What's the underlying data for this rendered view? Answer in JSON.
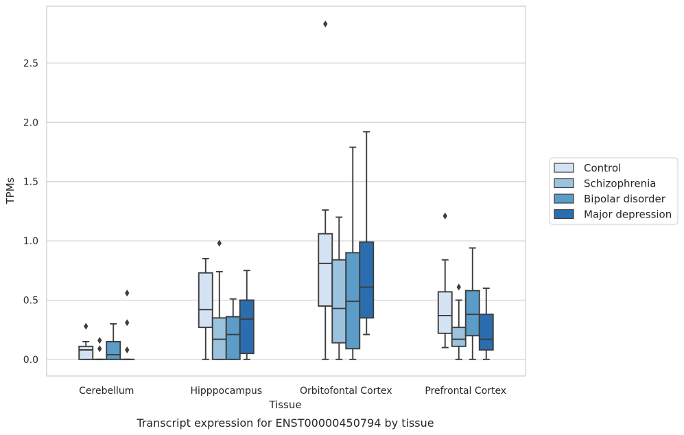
{
  "caption": "Transcript expression for ENST00000450794 by tissue",
  "chart_data": {
    "type": "boxplot",
    "xlabel": "Tissue",
    "ylabel": "TPMs",
    "ylim": [
      -0.14,
      2.98
    ],
    "yticks": [
      0.0,
      0.5,
      1.0,
      1.5,
      2.0,
      2.5
    ],
    "ytick_labels": [
      "0.0",
      "0.5",
      "1.0",
      "1.5",
      "2.0",
      "2.5"
    ],
    "grid": "horizontal",
    "legend_position": "right",
    "categories": [
      "Cerebellum",
      "Hipppocampus",
      "Orbitofontal Cortex",
      "Prefrontal Cortex"
    ],
    "series": [
      {
        "name": "Control",
        "color": "#d4e3f3",
        "boxes": [
          {
            "whislo": 0.0,
            "q1": 0.0,
            "med": 0.08,
            "q3": 0.11,
            "whishi": 0.15,
            "fliers": [
              0.28
            ]
          },
          {
            "whislo": 0.0,
            "q1": 0.27,
            "med": 0.42,
            "q3": 0.73,
            "whishi": 0.85,
            "fliers": []
          },
          {
            "whislo": 0.0,
            "q1": 0.45,
            "med": 0.81,
            "q3": 1.06,
            "whishi": 1.26,
            "fliers": [
              2.83
            ]
          },
          {
            "whislo": 0.1,
            "q1": 0.22,
            "med": 0.37,
            "q3": 0.57,
            "whishi": 0.84,
            "fliers": [
              1.21
            ]
          }
        ]
      },
      {
        "name": "Schizophrenia",
        "color": "#9bc3de",
        "boxes": [
          {
            "whislo": 0.0,
            "q1": 0.0,
            "med": 0.0,
            "q3": 0.0,
            "whishi": 0.0,
            "fliers": [
              0.09,
              0.16
            ]
          },
          {
            "whislo": 0.0,
            "q1": 0.0,
            "med": 0.17,
            "q3": 0.35,
            "whishi": 0.74,
            "fliers": [
              0.98
            ]
          },
          {
            "whislo": 0.0,
            "q1": 0.14,
            "med": 0.43,
            "q3": 0.84,
            "whishi": 1.2,
            "fliers": []
          },
          {
            "whislo": 0.0,
            "q1": 0.11,
            "med": 0.17,
            "q3": 0.27,
            "whishi": 0.5,
            "fliers": [
              0.61
            ]
          }
        ]
      },
      {
        "name": "Bipolar disorder",
        "color": "#5b9cc8",
        "boxes": [
          {
            "whislo": 0.0,
            "q1": 0.0,
            "med": 0.04,
            "q3": 0.15,
            "whishi": 0.3,
            "fliers": []
          },
          {
            "whislo": 0.0,
            "q1": 0.0,
            "med": 0.21,
            "q3": 0.36,
            "whishi": 0.51,
            "fliers": []
          },
          {
            "whislo": 0.0,
            "q1": 0.09,
            "med": 0.49,
            "q3": 0.9,
            "whishi": 1.79,
            "fliers": []
          },
          {
            "whislo": 0.0,
            "q1": 0.2,
            "med": 0.38,
            "q3": 0.58,
            "whishi": 0.94,
            "fliers": []
          }
        ]
      },
      {
        "name": "Major depression",
        "color": "#2a6eb0",
        "boxes": [
          {
            "whislo": 0.0,
            "q1": 0.0,
            "med": 0.0,
            "q3": 0.0,
            "whishi": 0.0,
            "fliers": [
              0.08,
              0.31,
              0.56
            ]
          },
          {
            "whislo": 0.0,
            "q1": 0.05,
            "med": 0.34,
            "q3": 0.5,
            "whishi": 0.75,
            "fliers": []
          },
          {
            "whislo": 0.21,
            "q1": 0.35,
            "med": 0.61,
            "q3": 0.99,
            "whishi": 1.92,
            "fliers": []
          },
          {
            "whislo": 0.0,
            "q1": 0.08,
            "med": 0.17,
            "q3": 0.38,
            "whishi": 0.6,
            "fliers": []
          }
        ]
      }
    ]
  }
}
